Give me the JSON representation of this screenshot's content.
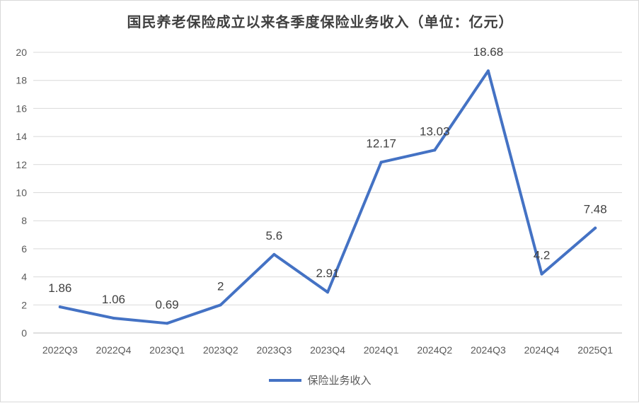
{
  "chart_data": {
    "type": "line",
    "title": "国民养老保险成立以来各季度保险业务收入（单位：亿元）",
    "categories": [
      "2022Q3",
      "2022Q4",
      "2023Q1",
      "2023Q2",
      "2023Q3",
      "2023Q4",
      "2024Q1",
      "2024Q2",
      "2024Q3",
      "2024Q4",
      "2025Q1"
    ],
    "series": [
      {
        "name": "保险业务收入",
        "color": "#4472C4",
        "values": [
          1.86,
          1.06,
          0.69,
          2,
          5.6,
          2.91,
          12.17,
          13.03,
          18.68,
          4.2,
          7.48
        ],
        "labels": [
          "1.86",
          "1.06",
          "0.69",
          "2",
          "5.6",
          "2.91",
          "12.17",
          "13.03",
          "18.68",
          "4.2",
          "7.48"
        ]
      }
    ],
    "ylim": [
      0,
      20
    ],
    "yticks": [
      0,
      2,
      4,
      6,
      8,
      10,
      12,
      14,
      16,
      18,
      20
    ],
    "grid": true,
    "legend_position": "bottom"
  }
}
